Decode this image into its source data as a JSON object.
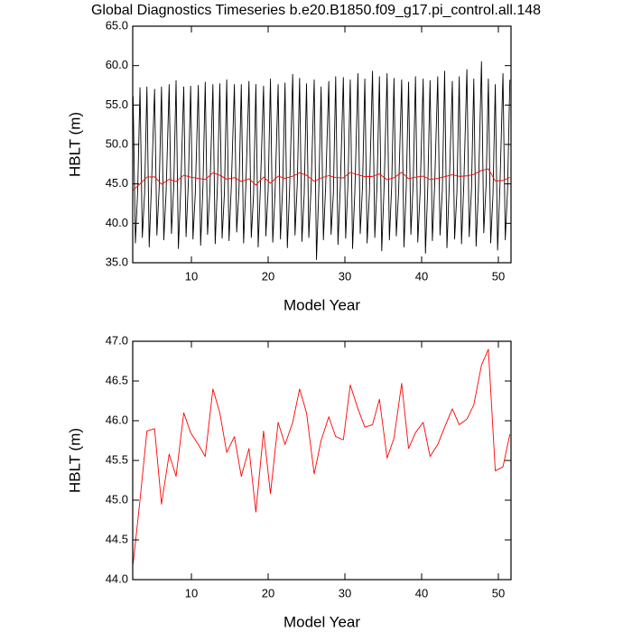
{
  "chart_data": [
    {
      "type": "line",
      "title": "Global Diagnostics Timeseries b.e20.B1850.f09_g17.pi_control.all.148",
      "xlabel": "Model Year",
      "ylabel": "HBLT (m)",
      "xlim": [
        2.35,
        51.65
      ],
      "xticks": [
        10,
        20,
        30,
        40,
        50
      ],
      "ylim": [
        35,
        65
      ],
      "yticks": [
        {
          "value": 35,
          "label": "35.0"
        },
        {
          "value": 40,
          "label": "40.0"
        },
        {
          "value": 45,
          "label": "45.0"
        },
        {
          "value": 50,
          "label": "50.0"
        },
        {
          "value": 55,
          "label": "55.0"
        },
        {
          "value": 60,
          "label": "60.0"
        },
        {
          "value": 65,
          "label": "65.0"
        }
      ],
      "series": [
        {
          "color": "#000000",
          "x": [
            2.4,
            2.7,
            3.0,
            3.3,
            3.6,
            3.9,
            4.2,
            4.5,
            4.8,
            5.2,
            5.5,
            5.8,
            6.1,
            6.4,
            6.7,
            7.1,
            7.4,
            7.7,
            8.0,
            8.3,
            8.6,
            9.0,
            9.3,
            9.6,
            9.9,
            10.2,
            10.5,
            10.9,
            11.2,
            11.5,
            11.8,
            12.1,
            12.4,
            12.8,
            13.1,
            13.4,
            13.7,
            14.0,
            14.3,
            14.6,
            14.9,
            15.2,
            15.6,
            15.9,
            16.2,
            16.5,
            16.8,
            17.1,
            17.5,
            17.8,
            18.1,
            18.4,
            18.7,
            19.0,
            19.4,
            19.7,
            20.0,
            20.3,
            20.6,
            20.9,
            21.3,
            21.6,
            21.9,
            22.2,
            22.5,
            22.8,
            23.2,
            23.5,
            23.8,
            24.1,
            24.4,
            24.7,
            25.0,
            25.3,
            25.6,
            26.0,
            26.3,
            26.6,
            26.9,
            27.2,
            27.5,
            27.9,
            28.2,
            28.5,
            28.8,
            29.1,
            29.4,
            29.8,
            30.1,
            30.4,
            30.7,
            31.0,
            31.3,
            31.7,
            32.0,
            32.3,
            32.6,
            32.9,
            33.2,
            33.6,
            33.9,
            34.2,
            34.5,
            34.8,
            35.1,
            35.5,
            35.8,
            36.1,
            36.4,
            36.7,
            37.0,
            37.4,
            37.7,
            38.0,
            38.3,
            38.6,
            38.9,
            39.2,
            39.5,
            39.8,
            40.2,
            40.5,
            40.8,
            41.1,
            41.4,
            41.7,
            42.1,
            42.4,
            42.7,
            43.0,
            43.3,
            43.6,
            44.0,
            44.3,
            44.6,
            44.9,
            45.2,
            45.5,
            45.9,
            46.2,
            46.5,
            46.8,
            47.1,
            47.4,
            47.8,
            48.1,
            48.4,
            48.7,
            49.0,
            49.3,
            49.6,
            49.9,
            50.2,
            50.6,
            50.9,
            51.2,
            51.5
          ],
          "values": [
            56.1,
            37.5,
            44.2,
            57.2,
            38.2,
            43.8,
            57.3,
            37.0,
            45.0,
            57.0,
            38.5,
            44.5,
            57.3,
            37.9,
            43.9,
            57.6,
            38.7,
            44.8,
            58.1,
            36.8,
            44.1,
            57.3,
            38.3,
            45.2,
            57.4,
            38.0,
            43.7,
            57.5,
            37.2,
            44.6,
            57.9,
            38.6,
            44.0,
            57.6,
            37.4,
            45.1,
            57.7,
            38.1,
            43.8,
            58.2,
            37.8,
            44.7,
            57.6,
            38.9,
            44.3,
            57.6,
            37.5,
            45.0,
            58.0,
            38.2,
            43.6,
            57.6,
            37.0,
            44.9,
            57.4,
            38.4,
            44.2,
            58.3,
            37.6,
            43.9,
            57.6,
            38.0,
            44.8,
            57.8,
            36.9,
            44.4,
            58.9,
            38.5,
            45.1,
            58.4,
            37.7,
            43.7,
            57.7,
            38.2,
            44.6,
            58.2,
            35.4,
            44.2,
            57.3,
            37.9,
            44.9,
            58.0,
            38.6,
            43.8,
            58.6,
            37.3,
            44.5,
            58.5,
            38.1,
            45.0,
            58.2,
            36.8,
            44.1,
            59.0,
            38.7,
            44.7,
            58.3,
            37.5,
            43.9,
            59.3,
            38.2,
            45.2,
            58.6,
            36.5,
            44.3,
            59.0,
            37.9,
            44.8,
            58.4,
            38.4,
            44.0,
            58.2,
            37.0,
            44.6,
            57.9,
            38.6,
            45.1,
            58.6,
            37.6,
            43.8,
            58.3,
            36.2,
            44.5,
            58.1,
            37.8,
            44.9,
            58.6,
            38.5,
            44.2,
            59.3,
            36.9,
            44.7,
            58.0,
            38.0,
            43.9,
            58.6,
            37.4,
            45.0,
            59.5,
            38.3,
            44.4,
            58.3,
            37.1,
            44.1,
            60.5,
            38.8,
            44.8,
            58.3,
            37.5,
            43.6,
            57.6,
            36.6,
            44.5,
            59.0,
            37.9,
            44.3,
            58.2
          ]
        },
        {
          "color": "#ff0000",
          "x": [
            2.4,
            3.3,
            4.2,
            5.2,
            6.1,
            7.1,
            8.0,
            9.0,
            9.9,
            10.9,
            11.8,
            12.8,
            13.7,
            14.6,
            15.6,
            16.5,
            17.5,
            18.4,
            19.4,
            20.3,
            21.3,
            22.2,
            23.2,
            24.1,
            25.0,
            26.0,
            26.9,
            27.9,
            28.8,
            29.8,
            30.7,
            31.7,
            32.6,
            33.6,
            34.5,
            35.5,
            36.4,
            37.4,
            38.3,
            39.2,
            40.2,
            41.1,
            42.1,
            43.0,
            44.0,
            44.9,
            45.9,
            46.8,
            47.8,
            48.7,
            49.6,
            50.6,
            51.5
          ],
          "values": [
            44.2,
            45.0,
            45.87,
            45.9,
            44.95,
            45.58,
            45.3,
            46.1,
            45.85,
            45.7,
            45.55,
            46.4,
            46.1,
            45.6,
            45.8,
            45.3,
            45.65,
            44.85,
            45.87,
            45.08,
            45.98,
            45.7,
            45.98,
            46.4,
            46.1,
            45.33,
            45.75,
            46.05,
            45.8,
            45.76,
            46.45,
            46.15,
            45.92,
            45.95,
            46.27,
            45.53,
            45.78,
            46.47,
            45.65,
            45.85,
            45.98,
            45.55,
            45.7,
            45.92,
            46.15,
            45.95,
            46.02,
            46.2,
            46.7,
            46.9,
            45.37,
            45.42,
            45.83
          ]
        }
      ]
    },
    {
      "type": "line",
      "xlabel": "Model Year",
      "ylabel": "HBLT (m)",
      "xlim": [
        2.35,
        51.65
      ],
      "xticks": [
        10,
        20,
        30,
        40,
        50
      ],
      "ylim": [
        44,
        47
      ],
      "yticks": [
        {
          "value": 44,
          "label": "44.0"
        },
        {
          "value": 44.5,
          "label": "44.5"
        },
        {
          "value": 45,
          "label": "45.0"
        },
        {
          "value": 45.5,
          "label": "45.5"
        },
        {
          "value": 46,
          "label": "46.0"
        },
        {
          "value": 46.5,
          "label": "46.5"
        },
        {
          "value": 47,
          "label": "47.0"
        }
      ],
      "series": [
        {
          "color": "#ff0000",
          "x": [
            2.4,
            3.3,
            4.2,
            5.2,
            6.1,
            7.1,
            8.0,
            9.0,
            9.9,
            10.9,
            11.8,
            12.8,
            13.7,
            14.6,
            15.6,
            16.5,
            17.5,
            18.4,
            19.4,
            20.3,
            21.3,
            22.2,
            23.2,
            24.1,
            25.0,
            26.0,
            26.9,
            27.9,
            28.8,
            29.8,
            30.7,
            31.7,
            32.6,
            33.6,
            34.5,
            35.5,
            36.4,
            37.4,
            38.3,
            39.2,
            40.2,
            41.1,
            42.1,
            43.0,
            44.0,
            44.9,
            45.9,
            46.8,
            47.8,
            48.7,
            49.6,
            50.6,
            51.5
          ],
          "values": [
            44.2,
            45.0,
            45.87,
            45.9,
            44.95,
            45.58,
            45.3,
            46.1,
            45.85,
            45.7,
            45.55,
            46.4,
            46.1,
            45.6,
            45.8,
            45.3,
            45.65,
            44.85,
            45.87,
            45.08,
            45.98,
            45.7,
            45.98,
            46.4,
            46.1,
            45.33,
            45.75,
            46.05,
            45.8,
            45.76,
            46.45,
            46.15,
            45.92,
            45.95,
            46.27,
            45.53,
            45.78,
            46.47,
            45.65,
            45.85,
            45.98,
            45.55,
            45.7,
            45.92,
            46.15,
            45.95,
            46.02,
            46.2,
            46.7,
            46.9,
            45.37,
            45.42,
            45.83
          ]
        }
      ]
    }
  ]
}
